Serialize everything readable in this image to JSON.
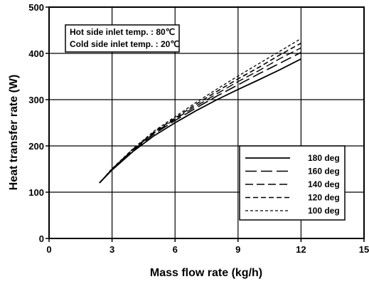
{
  "chart_data": {
    "type": "line",
    "title": "",
    "xlabel": "Mass flow rate (kg/h)",
    "ylabel": "Heat transfer rate (W)",
    "xlim": [
      0,
      15
    ],
    "ylim": [
      0,
      500
    ],
    "xticks": [
      "0",
      "3",
      "6",
      "9",
      "12",
      "15"
    ],
    "yticks": [
      "0",
      "100",
      "200",
      "300",
      "400",
      "500"
    ],
    "grid": true,
    "legend_position": "bottom-right",
    "annotations": [
      "Hot side inlet temp. : 80℃",
      "Cold side inlet temp. : 20℃"
    ],
    "series": [
      {
        "name": "180 deg",
        "dash": "solid",
        "x": [
          2.4,
          3,
          4,
          5,
          6,
          7,
          8,
          9,
          10,
          11,
          12
        ],
        "y": [
          120,
          148,
          188,
          222,
          250,
          276,
          300,
          322,
          343,
          365,
          388
        ]
      },
      {
        "name": "160 deg",
        "dash": "long",
        "x": [
          2.4,
          3,
          4,
          5,
          6,
          7,
          8,
          9,
          10,
          11,
          12
        ],
        "y": [
          120,
          149,
          190,
          226,
          255,
          282,
          308,
          332,
          356,
          379,
          402
        ]
      },
      {
        "name": "140 deg",
        "dash": "medium",
        "x": [
          2.4,
          3,
          4,
          5,
          6,
          7,
          8,
          9,
          10,
          11,
          12
        ],
        "y": [
          120,
          150,
          192,
          228,
          258,
          286,
          313,
          339,
          363,
          389,
          412
        ]
      },
      {
        "name": "120 deg",
        "dash": "short",
        "x": [
          2.4,
          3,
          4,
          5,
          6,
          7,
          8,
          9,
          10,
          11,
          12
        ],
        "y": [
          120,
          150,
          193,
          230,
          260,
          290,
          318,
          345,
          370,
          397,
          422
        ]
      },
      {
        "name": "100 deg",
        "dash": "fine",
        "x": [
          2.4,
          3,
          4,
          5,
          6,
          7,
          8,
          9,
          10,
          11,
          12
        ],
        "y": [
          120,
          151,
          194,
          232,
          263,
          294,
          323,
          351,
          378,
          405,
          432
        ]
      }
    ]
  }
}
